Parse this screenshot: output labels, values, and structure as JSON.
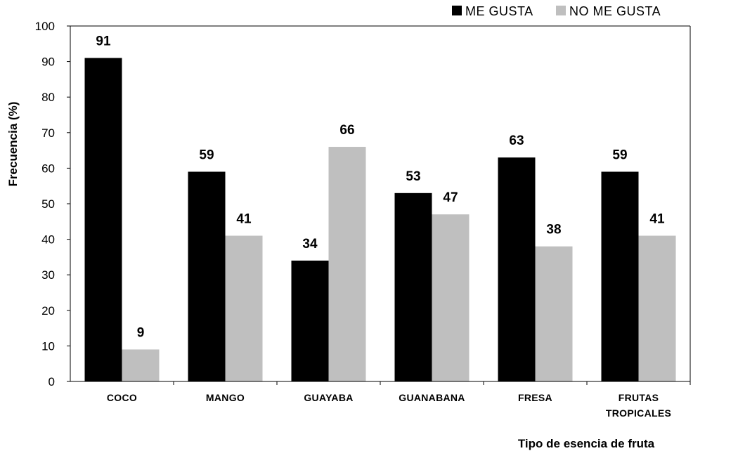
{
  "chart_data": {
    "type": "bar",
    "categories": [
      [
        "COCO"
      ],
      [
        "MANGO"
      ],
      [
        "GUAYABA"
      ],
      [
        "GUANABANA"
      ],
      [
        "FRESA"
      ],
      [
        "FRUTAS",
        "TROPICALES"
      ]
    ],
    "series": [
      {
        "name": "ME GUSTA",
        "color": "#000000",
        "values": [
          91,
          59,
          34,
          53,
          63,
          59
        ]
      },
      {
        "name": "NO ME GUSTA",
        "color": "#bfbfbf",
        "values": [
          9,
          41,
          66,
          47,
          38,
          41
        ]
      }
    ],
    "title": "",
    "xlabel": "Tipo de esencia de fruta",
    "ylabel": "Frecuencia (%)",
    "ylim": [
      0,
      100
    ],
    "yticks": [
      0,
      10,
      20,
      30,
      40,
      50,
      60,
      70,
      80,
      90,
      100
    ],
    "grid": false,
    "legend_position": "top-right",
    "data_labels": true
  }
}
